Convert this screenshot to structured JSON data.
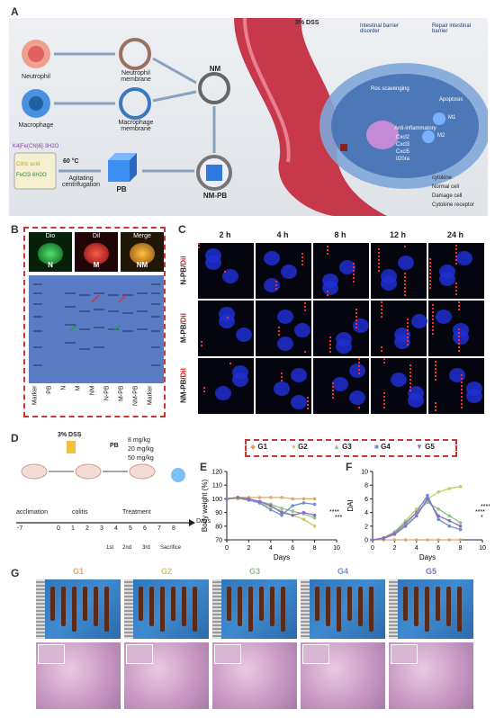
{
  "panelA": {
    "label": "A",
    "cells": {
      "neutrophil": "Neutrophil",
      "macrophage": "Macrophage"
    },
    "membranes": {
      "neutrophil": "Neutrophil membrane",
      "macrophage": "Macrophage membrane"
    },
    "reagents": [
      "K4[Fe(CN)6]·3H2O",
      "Citric acid",
      "FeCl3·6H2O"
    ],
    "temp": "60 °C",
    "process": "Agitating centrifugation",
    "pb": "PB",
    "nm": "NM",
    "nmpb": "NM-PB",
    "dss": "3% DSS",
    "barrier": {
      "disorder": "Intestinal barrier disorder",
      "repair": "Repair intestinal barrier"
    },
    "mech": {
      "ros": "Ros scavenging",
      "apoptosis": "Apoptosis",
      "anti": "Anti-inflammatory",
      "genes": [
        "Cxcl2",
        "Cxcl3",
        "Cxcl5",
        "Il20ra"
      ],
      "m1": "M1",
      "m2": "M2"
    },
    "legend": [
      "cytokine",
      "Normal cell",
      "Damage cell",
      "Cytokine receptor"
    ]
  },
  "panelB": {
    "label": "B",
    "fluor": [
      {
        "title": "Dio",
        "letter": "N"
      },
      {
        "title": "Dil",
        "letter": "M"
      },
      {
        "title": "Merge",
        "letter": "NM"
      }
    ],
    "lanes": [
      "Marker",
      "PB",
      "N",
      "M",
      "NM",
      "N-PB",
      "M-PB",
      "NM-PB",
      "Marker"
    ]
  },
  "panelC": {
    "label": "C",
    "times": [
      "2 h",
      "4 h",
      "8 h",
      "12 h",
      "24 h"
    ],
    "rows": [
      {
        "name": "N-PB",
        "dye": "Dil"
      },
      {
        "name": "M-PB",
        "dye": "Dil"
      },
      {
        "name": "NM-PB",
        "dye": "Dil"
      }
    ]
  },
  "panelD": {
    "label": "D",
    "dss": "3% DSS",
    "pb": "PB",
    "doses": [
      "8 mg/kg",
      "20 mg/kg",
      "50 mg/kg"
    ],
    "phases": [
      "acclimation",
      "colitis",
      "Treatment"
    ],
    "ticks": [
      "-7",
      "0",
      "1",
      "2",
      "3",
      "4",
      "5",
      "6",
      "7",
      "8"
    ],
    "axis": "Days",
    "doses_order": [
      "1st",
      "2nd",
      "3rd",
      "Sacrifice"
    ]
  },
  "groups": {
    "names": [
      "G1",
      "G2",
      "G3",
      "G4",
      "G5"
    ],
    "colors": [
      "#d9a774",
      "#c9c96a",
      "#8fc08a",
      "#6e8ed0",
      "#8a6fc0"
    ]
  },
  "panelE": {
    "label": "E",
    "chart_data": {
      "type": "line",
      "xlabel": "Days",
      "ylabel": "Body weight (%)",
      "xlim": [
        0,
        10
      ],
      "ylim": [
        70,
        120
      ],
      "xticks": [
        0,
        2,
        4,
        6,
        8,
        10
      ],
      "yticks": [
        70,
        80,
        90,
        100,
        110,
        120
      ],
      "x": [
        0,
        1,
        2,
        3,
        4,
        5,
        6,
        7,
        8
      ],
      "series": [
        {
          "name": "G1",
          "values": [
            100,
            101,
            101,
            101,
            101,
            101,
            100,
            100,
            100
          ]
        },
        {
          "name": "G2",
          "values": [
            100,
            100,
            99,
            97,
            94,
            91,
            88,
            85,
            80
          ]
        },
        {
          "name": "G3",
          "values": [
            100,
            101,
            100,
            98,
            96,
            93,
            91,
            89,
            86
          ]
        },
        {
          "name": "G4",
          "values": [
            100,
            101,
            99,
            97,
            92,
            88,
            95,
            97,
            96
          ]
        },
        {
          "name": "G5",
          "values": [
            100,
            101,
            100,
            98,
            95,
            90,
            88,
            90,
            88
          ]
        }
      ],
      "annotations": [
        "***",
        "****"
      ]
    }
  },
  "panelF": {
    "label": "F",
    "chart_data": {
      "type": "line",
      "xlabel": "Days",
      "ylabel": "DAI",
      "xlim": [
        0,
        10
      ],
      "ylim": [
        0,
        10
      ],
      "xticks": [
        0,
        2,
        4,
        6,
        8,
        10
      ],
      "yticks": [
        0,
        2,
        4,
        6,
        8,
        10
      ],
      "x": [
        0,
        1,
        2,
        3,
        4,
        5,
        6,
        7,
        8
      ],
      "series": [
        {
          "name": "G1",
          "values": [
            0,
            0,
            0,
            0,
            0,
            0,
            0,
            0,
            0
          ]
        },
        {
          "name": "G2",
          "values": [
            0,
            0.3,
            1.2,
            2.8,
            4.5,
            6,
            7,
            7.5,
            7.8
          ]
        },
        {
          "name": "G3",
          "values": [
            0,
            0.2,
            1,
            2.2,
            4,
            5.5,
            4.5,
            3.5,
            2.5
          ]
        },
        {
          "name": "G4",
          "values": [
            0,
            0.3,
            1,
            2.5,
            4,
            6.5,
            3,
            2,
            1.5
          ]
        },
        {
          "name": "G5",
          "values": [
            0,
            0.2,
            0.8,
            2,
            3.5,
            6,
            3.5,
            2.8,
            2
          ]
        }
      ],
      "annotations": [
        "*",
        "****",
        "****"
      ]
    }
  },
  "panelG": {
    "label": "G",
    "groups": [
      "G1",
      "G2",
      "G3",
      "G4",
      "G5"
    ]
  }
}
